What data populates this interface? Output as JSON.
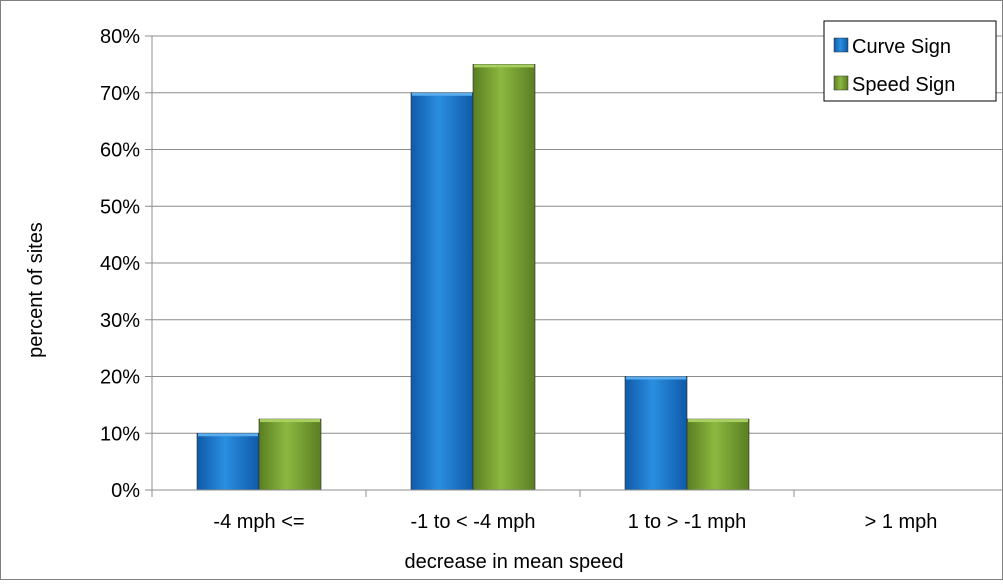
{
  "chart_data": {
    "type": "bar",
    "title": "",
    "xlabel": "decrease in mean speed",
    "ylabel": "percent of sites",
    "categories": [
      "-4 mph <=",
      "-1 to < -4 mph",
      "1 to > -1 mph",
      "> 1 mph"
    ],
    "series": [
      {
        "name": "Curve Sign",
        "values": [
          10,
          70,
          20,
          0
        ]
      },
      {
        "name": "Speed Sign",
        "values": [
          12.5,
          75,
          12.5,
          0
        ]
      }
    ],
    "ylim": [
      0,
      80
    ],
    "yticks": [
      0,
      10,
      20,
      30,
      40,
      50,
      60,
      70,
      80
    ],
    "ytick_format": "%",
    "grid": true,
    "legend_position": "top-right",
    "colors": {
      "Curve Sign": "#1f78c8",
      "Speed Sign": "#77a033",
      "grid": "#8c8c8c",
      "axis": "#8c8c8c",
      "border": "#808080"
    }
  }
}
